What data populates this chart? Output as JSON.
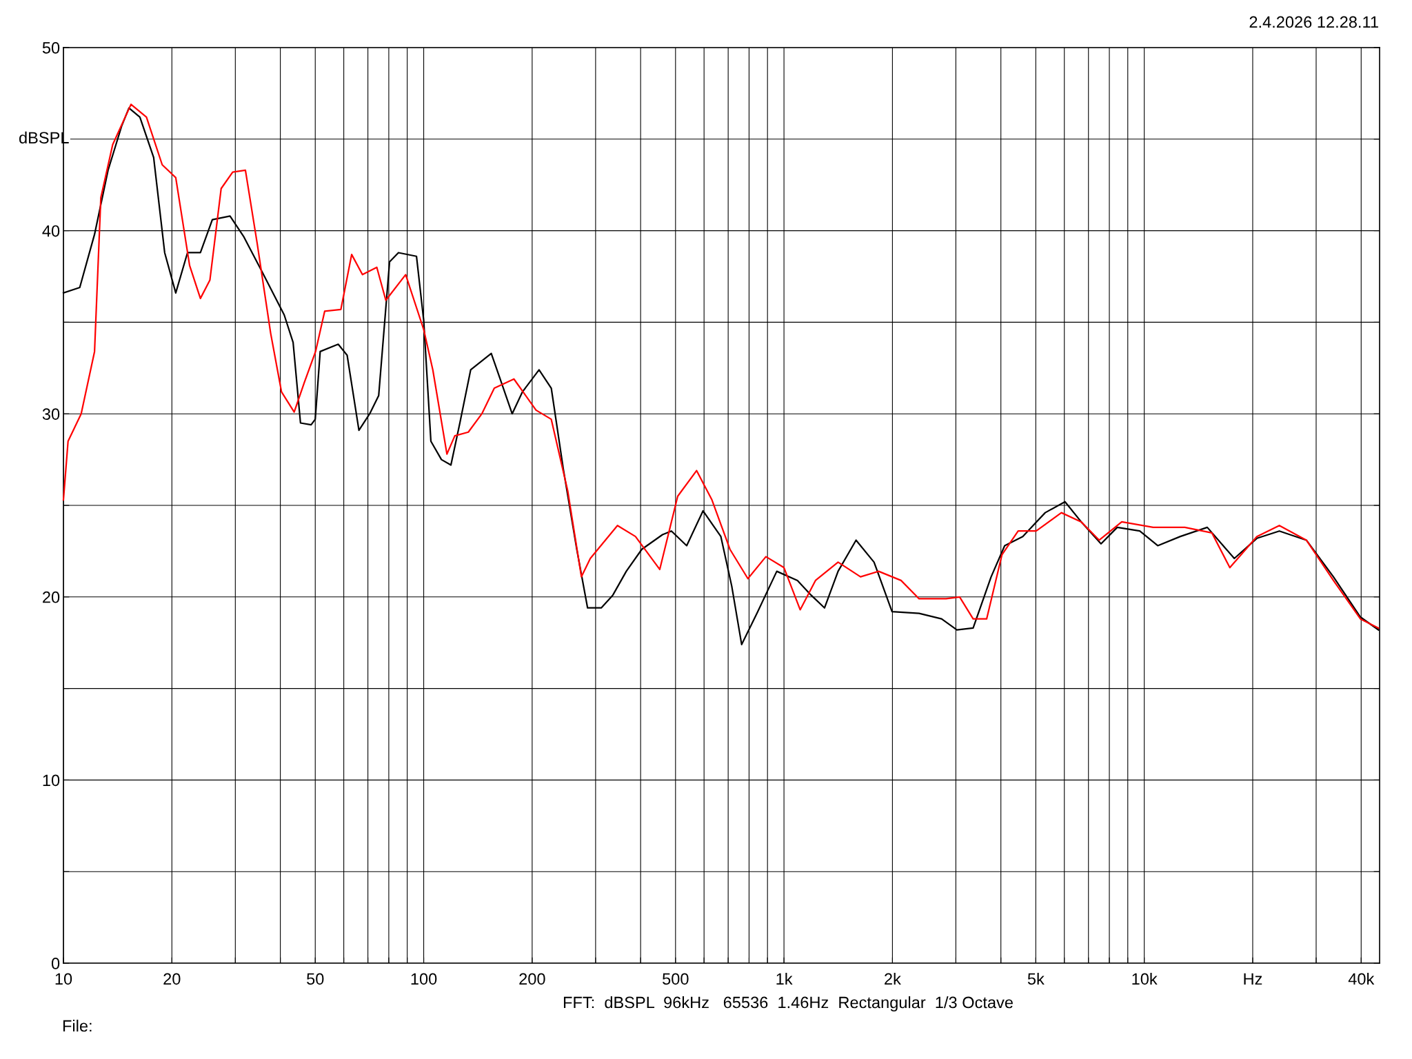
{
  "chart_data": {
    "type": "line",
    "ylabel": "dBSPL",
    "annotations": [
      "2.4.2026 12.28.11",
      "FFT:  dBSPL  96kHz   65536  1.46Hz  Rectangular  1/3 Octave",
      "File:"
    ],
    "log": "x",
    "xlim": [
      10,
      45000
    ],
    "ylim": [
      0,
      50
    ],
    "xticks": [
      10,
      20,
      {
        "value": 30,
        "label": null
      },
      {
        "value": 40,
        "label": null
      },
      50,
      {
        "value": 60,
        "label": null
      },
      {
        "value": 70,
        "label": null
      },
      {
        "value": 80,
        "label": null
      },
      {
        "value": 90,
        "label": null
      },
      100,
      200,
      {
        "value": 300,
        "label": null
      },
      {
        "value": 400,
        "label": null
      },
      500,
      {
        "value": 600,
        "label": null
      },
      {
        "value": 700,
        "label": null
      },
      {
        "value": 800,
        "label": null
      },
      {
        "value": 900,
        "label": null
      },
      {
        "value": 1000,
        "label": "1k"
      },
      {
        "value": 2000,
        "label": "2k"
      },
      {
        "value": 3000,
        "label": null
      },
      {
        "value": 4000,
        "label": null
      },
      {
        "value": 5000,
        "label": "5k"
      },
      {
        "value": 6000,
        "label": null
      },
      {
        "value": 7000,
        "label": null
      },
      {
        "value": 8000,
        "label": null
      },
      {
        "value": 9000,
        "label": null
      },
      {
        "value": 10000,
        "label": "10k"
      },
      {
        "value": 20000,
        "label": "Hz"
      },
      {
        "value": 30000,
        "label": null
      },
      {
        "value": 40000,
        "label": "40k"
      }
    ],
    "yticks": [
      0,
      {
        "value": 5,
        "label": null
      },
      10,
      {
        "value": 15,
        "label": null
      },
      20,
      {
        "value": 25,
        "label": null
      },
      30,
      {
        "value": 35,
        "label": null
      },
      40,
      {
        "value": 45,
        "label": null
      },
      50
    ],
    "grid": true,
    "marker": "none",
    "line_style": "solid",
    "series": [
      {
        "color": "#000000",
        "x": [
          10,
          11.1,
          12.2,
          13.3,
          14.5,
          15.2,
          16.3,
          17.8,
          19.1,
          20.5,
          22.1,
          24.0,
          25.9,
          29.0,
          31.6,
          35.5,
          41.0,
          43.4,
          45.5,
          48.7,
          50,
          51.6,
          57.9,
          61.3,
          66.1,
          70.8,
          75.0,
          80.4,
          85.1,
          95.5,
          100,
          104.7,
          112,
          119,
          126,
          135,
          154,
          163,
          176,
          188,
          209,
          226,
          244,
          266,
          285,
          311,
          335,
          365,
          403,
          460,
          487,
          537,
          596,
          668,
          716,
          763,
          841,
          955,
          1090,
          1189,
          1296,
          1413,
          1585,
          1778,
          1995,
          2371,
          2738,
          3020,
          3350,
          3758,
          4098,
          4600,
          5309,
          6026,
          6683,
          7586,
          8414,
          9716,
          10900,
          12590,
          14960,
          17780,
          20540,
          23710,
          28180,
          33500,
          39810,
          44670
        ],
        "values": [
          36.6,
          36.9,
          39.8,
          43.3,
          45.7,
          46.7,
          46.2,
          44.0,
          38.8,
          36.6,
          38.8,
          38.8,
          40.6,
          40.8,
          39.7,
          37.8,
          35.4,
          33.9,
          29.5,
          29.4,
          29.7,
          33.4,
          33.8,
          33.2,
          29.1,
          30.0,
          31.0,
          38.3,
          38.8,
          38.6,
          35.1,
          28.5,
          27.5,
          27.2,
          29.5,
          32.4,
          33.3,
          31.9,
          30.0,
          31.2,
          32.4,
          31.4,
          27.0,
          22.6,
          19.4,
          19.4,
          20.1,
          21.4,
          22.6,
          23.4,
          23.6,
          22.8,
          24.7,
          23.3,
          20.6,
          17.4,
          19.1,
          21.4,
          20.9,
          20.1,
          19.4,
          21.4,
          23.1,
          21.9,
          19.2,
          19.1,
          18.8,
          18.2,
          18.3,
          21.1,
          22.8,
          23.3,
          24.6,
          25.2,
          24.1,
          22.9,
          23.8,
          23.6,
          22.8,
          23.3,
          23.8,
          22.1,
          23.2,
          23.6,
          23.1,
          21.1,
          18.9,
          18.2
        ]
      },
      {
        "color": "#ff0000",
        "x": [
          10,
          10.3,
          11.2,
          12.2,
          12.7,
          13.7,
          15.4,
          17.0,
          18.8,
          20.5,
          22.4,
          24.0,
          25.5,
          27.4,
          29.5,
          32.0,
          34.5,
          37.6,
          40.3,
          43.7,
          46.6,
          50.1,
          53.1,
          58.9,
          63.1,
          67.6,
          74.1,
          78.5,
          89.1,
          100,
          106,
          116,
          122,
          133,
          145,
          157,
          178,
          205,
          226,
          251,
          274,
          290,
          345,
          387,
          452,
          507,
          572,
          631,
          708,
          794,
          891,
          1000,
          1109,
          1223,
          1413,
          1631,
          1831,
          2113,
          2371,
          2818,
          3073,
          3350,
          3652,
          4027,
          4467,
          5012,
          5888,
          6683,
          7499,
          8660,
          10590,
          12960,
          15400,
          17280,
          20540,
          23710,
          28180,
          33500,
          39810,
          44670
        ],
        "values": [
          25.3,
          28.5,
          30.0,
          33.4,
          41.8,
          44.7,
          46.9,
          46.2,
          43.6,
          42.9,
          38.1,
          36.3,
          37.3,
          42.3,
          43.2,
          43.3,
          39.3,
          34.4,
          31.2,
          30.1,
          31.7,
          33.4,
          35.6,
          35.7,
          38.7,
          37.6,
          38.0,
          36.2,
          37.6,
          34.6,
          32.4,
          27.8,
          28.8,
          29.0,
          30.0,
          31.4,
          31.9,
          30.2,
          29.7,
          25.8,
          21.1,
          22.1,
          23.9,
          23.3,
          21.5,
          25.5,
          26.9,
          25.3,
          22.6,
          21.0,
          22.2,
          21.6,
          19.3,
          20.9,
          21.9,
          21.1,
          21.4,
          20.9,
          19.9,
          19.9,
          20.0,
          18.8,
          18.8,
          22.3,
          23.6,
          23.6,
          24.6,
          24.1,
          23.1,
          24.1,
          23.8,
          23.8,
          23.5,
          21.6,
          23.3,
          23.9,
          23.1,
          20.9,
          18.8,
          18.3
        ]
      }
    ]
  }
}
